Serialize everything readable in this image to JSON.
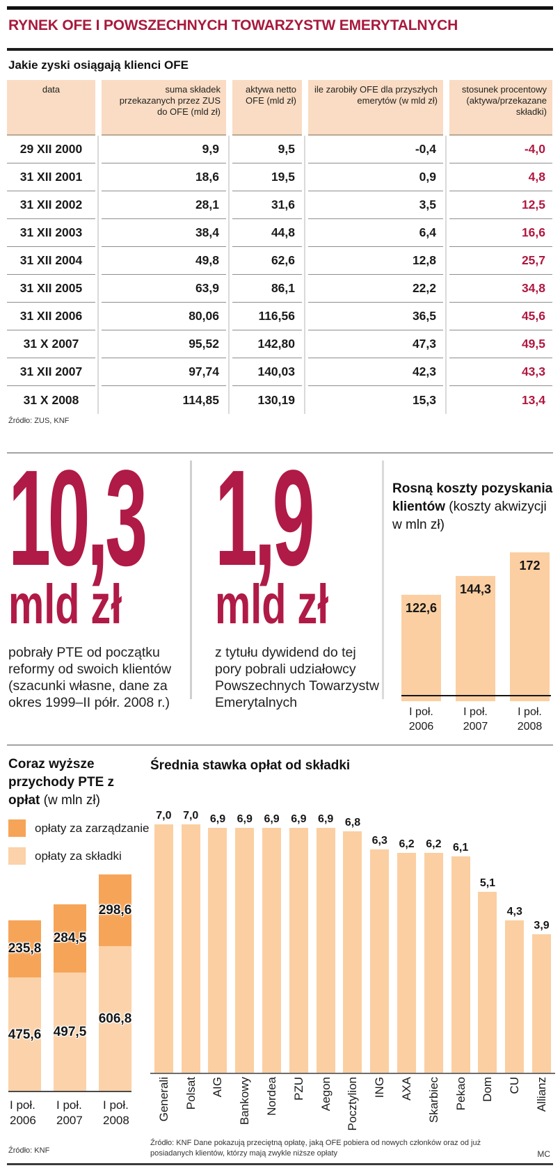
{
  "page": {
    "title": "RYNEK OFE I POWSZECHNYCH TOWARZYSTW EMERYTALNYCH",
    "credit": "MC"
  },
  "table_section": {
    "title": "Jakie zyski osiągają klienci OFE",
    "source": "Źródło: ZUS, KNF",
    "columns": [
      "data",
      "suma składek przekazanych przez ZUS do OFE (mld zł)",
      "aktywa netto OFE (mld zł)",
      "ile zarobiły OFE dla przyszłych emerytów (w mld zł)",
      "stosunek procentowy (aktywa/przekazane składki)"
    ],
    "rows": [
      [
        "29 XII 2000",
        "9,9",
        "9,5",
        "-0,4",
        "-4,0"
      ],
      [
        "31 XII 2001",
        "18,6",
        "19,5",
        "0,9",
        "4,8"
      ],
      [
        "31 XII 2002",
        "28,1",
        "31,6",
        "3,5",
        "12,5"
      ],
      [
        "31 XII 2003",
        "38,4",
        "44,8",
        "6,4",
        "16,6"
      ],
      [
        "31 XII 2004",
        "49,8",
        "62,6",
        "12,8",
        "25,7"
      ],
      [
        "31 XII 2005",
        "63,9",
        "86,1",
        "22,2",
        "34,8"
      ],
      [
        "31 XII 2006",
        "80,06",
        "116,56",
        "36,5",
        "45,6"
      ],
      [
        "31 X 2007",
        "95,52",
        "142,80",
        "47,3",
        "49,5"
      ],
      [
        "31 XII 2007",
        "97,74",
        "140,03",
        "42,3",
        "43,3"
      ],
      [
        "31 X 2008",
        "114,85",
        "130,19",
        "15,3",
        "13,4"
      ]
    ]
  },
  "highlights": [
    {
      "value": "10,3",
      "unit": "mld zł",
      "description": "pobrały PTE od początku reformy od swoich klientów (szacunki własne, dane za okres 1999–II półr. 2008 r.)"
    },
    {
      "value": "1,9",
      "unit": "mld zł",
      "description": "z tytułu dywidend do tej pory pobrali udziałowcy Powszechnych Towarzystw Emerytalnych"
    }
  ],
  "chart_data": [
    {
      "type": "bar",
      "title": "Rosną koszty pozyskania klientów",
      "subtitle": "(koszty akwizycji w mln zł)",
      "categories": [
        "I poł. 2006",
        "I poł. 2007",
        "I poł. 2008"
      ],
      "values": [
        122.6,
        144.3,
        172
      ],
      "value_labels": [
        "122,6",
        "144,3",
        "172"
      ],
      "bar_color": "#fbcfa2",
      "ylim": [
        0,
        185
      ],
      "grid": false,
      "value_label_position": "inside-top"
    },
    {
      "type": "bar",
      "subtype": "stacked",
      "title": "Coraz wyższe przychody PTE z opłat",
      "subtitle": "(w mln zł)",
      "source": "Źródło: KNF",
      "categories": [
        "I poł. 2006",
        "I poł. 2007",
        "I poł. 2008"
      ],
      "series": [
        {
          "name": "opłaty za zarządzanie",
          "color": "#f6a458",
          "values": [
            235.8,
            284.5,
            298.6
          ],
          "value_labels": [
            "235,8",
            "284,5",
            "298,6"
          ]
        },
        {
          "name": "opłaty za składki",
          "color": "#fbd2a9",
          "values": [
            475.6,
            497.5,
            606.8
          ],
          "value_labels": [
            "475,6",
            "497,5",
            "606,8"
          ]
        }
      ],
      "legend_position": "top-left",
      "ylim": [
        0,
        950
      ],
      "grid": false
    },
    {
      "type": "bar",
      "title": "Średnia stawka opłat od składki",
      "source": "Źródło: KNF Dane pokazują przeciętną opłatę, jaką OFE pobiera od nowych członków oraz od już posiadanych klientów, którzy mają zwykle niższe opłaty",
      "categories": [
        "Generali",
        "Polsat",
        "AIG",
        "Bankowy",
        "Nordea",
        "PZU",
        "Aegon",
        "Pocztylion",
        "ING",
        "AXA",
        "Skarbiec",
        "Pekao",
        "Dom",
        "CU",
        "Allianz"
      ],
      "values": [
        7.0,
        7.0,
        6.9,
        6.9,
        6.9,
        6.9,
        6.9,
        6.8,
        6.3,
        6.2,
        6.2,
        6.1,
        5.1,
        4.3,
        3.9
      ],
      "value_labels": [
        "7,0",
        "7,0",
        "6,9",
        "6,9",
        "6,9",
        "6,9",
        "6,9",
        "6,8",
        "6,3",
        "6,2",
        "6,2",
        "6,1",
        "5,1",
        "4,3",
        "3,9"
      ],
      "bar_color": "#fbcfa2",
      "ylim": [
        0,
        7.6
      ],
      "grid": false,
      "value_label_position": "above",
      "category_label_rotation": 90
    }
  ],
  "colors": {
    "accent_red": "#b01a46",
    "title_red": "#a8193c",
    "peach_light": "#fbcfa2",
    "peach_header": "#f9dcc3",
    "orange": "#f6a458",
    "text_dark": "#1a1a1a"
  }
}
